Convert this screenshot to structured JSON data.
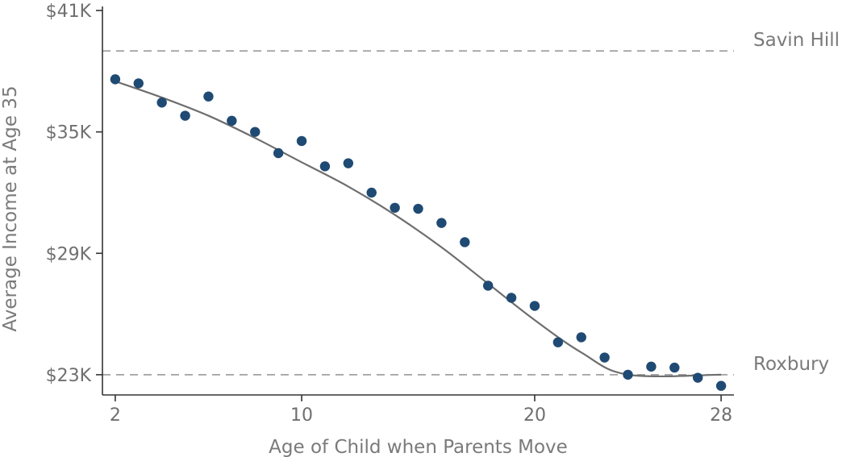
{
  "chart_data": {
    "type": "scatter",
    "xlabel": "Age of Child when Parents Move",
    "ylabel": "Average Income at Age 35",
    "xlim": [
      1.45,
      28.55
    ],
    "ylim": [
      22.0,
      41.2
    ],
    "x_ticks": [
      {
        "value": 2,
        "label": "2"
      },
      {
        "value": 10,
        "label": "10"
      },
      {
        "value": 20,
        "label": "20"
      },
      {
        "value": 28,
        "label": "28"
      }
    ],
    "y_ticks": [
      {
        "value": 23,
        "label": "$23K"
      },
      {
        "value": 29,
        "label": "$29K"
      },
      {
        "value": 35,
        "label": "$35K"
      },
      {
        "value": 41,
        "label": "$41K"
      }
    ],
    "reference_lines": [
      {
        "label": "Savin Hill",
        "y": 39.0
      },
      {
        "label": "Roxbury",
        "y": 23.0
      }
    ],
    "points": [
      {
        "x": 2,
        "y": 37.6
      },
      {
        "x": 3,
        "y": 37.4
      },
      {
        "x": 4,
        "y": 36.45
      },
      {
        "x": 5,
        "y": 35.8
      },
      {
        "x": 6,
        "y": 36.75
      },
      {
        "x": 7,
        "y": 35.55
      },
      {
        "x": 8,
        "y": 35.0
      },
      {
        "x": 9,
        "y": 33.95
      },
      {
        "x": 10,
        "y": 34.55
      },
      {
        "x": 11,
        "y": 33.3
      },
      {
        "x": 12,
        "y": 33.45
      },
      {
        "x": 13,
        "y": 32.0
      },
      {
        "x": 14,
        "y": 31.25
      },
      {
        "x": 15,
        "y": 31.2
      },
      {
        "x": 16,
        "y": 30.5
      },
      {
        "x": 17,
        "y": 29.55
      },
      {
        "x": 18,
        "y": 27.4
      },
      {
        "x": 19,
        "y": 26.8
      },
      {
        "x": 20,
        "y": 26.4
      },
      {
        "x": 21,
        "y": 24.6
      },
      {
        "x": 22,
        "y": 24.85
      },
      {
        "x": 23,
        "y": 23.85
      },
      {
        "x": 24,
        "y": 23.0
      },
      {
        "x": 25,
        "y": 23.4
      },
      {
        "x": 26,
        "y": 23.35
      },
      {
        "x": 27,
        "y": 22.85
      },
      {
        "x": 28,
        "y": 22.45
      }
    ],
    "fit_curve": [
      {
        "x": 2,
        "y": 37.5
      },
      {
        "x": 4,
        "y": 36.7
      },
      {
        "x": 6,
        "y": 35.8
      },
      {
        "x": 8,
        "y": 34.7
      },
      {
        "x": 10,
        "y": 33.5
      },
      {
        "x": 12,
        "y": 32.3
      },
      {
        "x": 14,
        "y": 30.9
      },
      {
        "x": 16,
        "y": 29.3
      },
      {
        "x": 18,
        "y": 27.5
      },
      {
        "x": 20,
        "y": 25.7
      },
      {
        "x": 22,
        "y": 24.1
      },
      {
        "x": 24,
        "y": 23.0
      },
      {
        "x": 28,
        "y": 23.0
      }
    ],
    "colors": {
      "points": "#1f4a73",
      "fit_line": "#6e6e6e",
      "reference_lines": "#9a9a9a",
      "axis": "#333333"
    },
    "grid": false,
    "legend": "none"
  }
}
